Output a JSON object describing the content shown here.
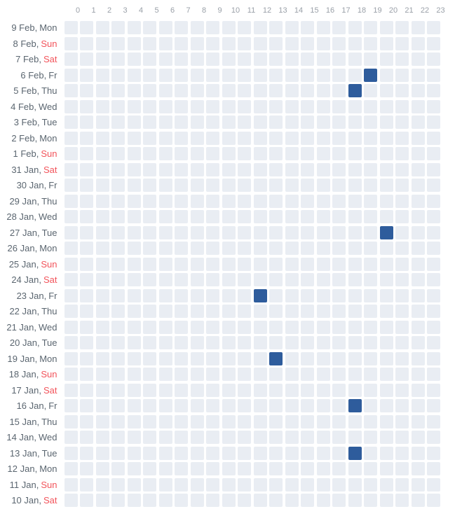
{
  "chart_data": {
    "type": "heatmap",
    "title": "",
    "xlabel": "",
    "ylabel": "",
    "x_ticks": [
      "0",
      "1",
      "2",
      "3",
      "4",
      "5",
      "6",
      "7",
      "8",
      "9",
      "10",
      "11",
      "12",
      "13",
      "14",
      "15",
      "16",
      "17",
      "18",
      "19",
      "20",
      "21",
      "22",
      "23"
    ],
    "layout_hints": {
      "grid": "24 columns x 31 rows",
      "row_labels_position": "left",
      "hour_labels_position": "top",
      "legend": "none",
      "cell_encoding": "binary: filled = activity during that hour, empty = none"
    },
    "rows": [
      {
        "date": "9 Feb,",
        "day": "Mon",
        "weekend": false,
        "active_hours": []
      },
      {
        "date": "8 Feb,",
        "day": "Sun",
        "weekend": true,
        "active_hours": []
      },
      {
        "date": "7 Feb,",
        "day": "Sat",
        "weekend": true,
        "active_hours": []
      },
      {
        "date": "6 Feb,",
        "day": "Fr",
        "weekend": false,
        "active_hours": [
          19
        ]
      },
      {
        "date": "5 Feb,",
        "day": "Thu",
        "weekend": false,
        "active_hours": [
          18
        ]
      },
      {
        "date": "4 Feb,",
        "day": "Wed",
        "weekend": false,
        "active_hours": []
      },
      {
        "date": "3 Feb,",
        "day": "Tue",
        "weekend": false,
        "active_hours": []
      },
      {
        "date": "2 Feb,",
        "day": "Mon",
        "weekend": false,
        "active_hours": []
      },
      {
        "date": "1 Feb,",
        "day": "Sun",
        "weekend": true,
        "active_hours": []
      },
      {
        "date": "31 Jan,",
        "day": "Sat",
        "weekend": true,
        "active_hours": []
      },
      {
        "date": "30 Jan,",
        "day": "Fr",
        "weekend": false,
        "active_hours": []
      },
      {
        "date": "29 Jan,",
        "day": "Thu",
        "weekend": false,
        "active_hours": []
      },
      {
        "date": "28 Jan,",
        "day": "Wed",
        "weekend": false,
        "active_hours": []
      },
      {
        "date": "27 Jan,",
        "day": "Tue",
        "weekend": false,
        "active_hours": [
          20
        ]
      },
      {
        "date": "26 Jan,",
        "day": "Mon",
        "weekend": false,
        "active_hours": []
      },
      {
        "date": "25 Jan,",
        "day": "Sun",
        "weekend": true,
        "active_hours": []
      },
      {
        "date": "24 Jan,",
        "day": "Sat",
        "weekend": true,
        "active_hours": []
      },
      {
        "date": "23 Jan,",
        "day": "Fr",
        "weekend": false,
        "active_hours": [
          12
        ]
      },
      {
        "date": "22 Jan,",
        "day": "Thu",
        "weekend": false,
        "active_hours": []
      },
      {
        "date": "21 Jan,",
        "day": "Wed",
        "weekend": false,
        "active_hours": []
      },
      {
        "date": "20 Jan,",
        "day": "Tue",
        "weekend": false,
        "active_hours": []
      },
      {
        "date": "19 Jan,",
        "day": "Mon",
        "weekend": false,
        "active_hours": [
          13
        ]
      },
      {
        "date": "18 Jan,",
        "day": "Sun",
        "weekend": true,
        "active_hours": []
      },
      {
        "date": "17 Jan,",
        "day": "Sat",
        "weekend": true,
        "active_hours": []
      },
      {
        "date": "16 Jan,",
        "day": "Fr",
        "weekend": false,
        "active_hours": [
          18
        ]
      },
      {
        "date": "15 Jan,",
        "day": "Thu",
        "weekend": false,
        "active_hours": []
      },
      {
        "date": "14 Jan,",
        "day": "Wed",
        "weekend": false,
        "active_hours": []
      },
      {
        "date": "13 Jan,",
        "day": "Tue",
        "weekend": false,
        "active_hours": [
          18
        ]
      },
      {
        "date": "12 Jan,",
        "day": "Mon",
        "weekend": false,
        "active_hours": []
      },
      {
        "date": "11 Jan,",
        "day": "Sun",
        "weekend": true,
        "active_hours": []
      },
      {
        "date": "10 Jan,",
        "day": "Sat",
        "weekend": true,
        "active_hours": []
      }
    ]
  },
  "colors": {
    "active_cell": "#2e5c9c",
    "inactive_cell": "#e9edf3",
    "hour_label": "#9aa0a8",
    "date_label": "#5b6670",
    "weekend_label": "#f2545b",
    "background": "#ffffff"
  }
}
